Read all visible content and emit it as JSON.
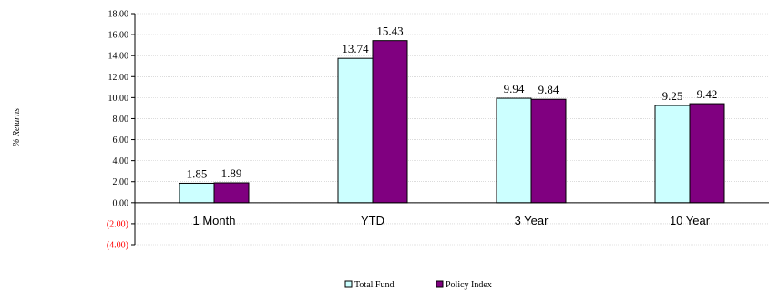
{
  "chart_data": {
    "type": "bar",
    "ylabel": "% Returns",
    "ylim": [
      -4,
      18
    ],
    "yticks": [
      {
        "value": 18,
        "label": "18.00"
      },
      {
        "value": 16,
        "label": "16.00"
      },
      {
        "value": 14,
        "label": "14.00"
      },
      {
        "value": 12,
        "label": "12.00"
      },
      {
        "value": 10,
        "label": "10.00"
      },
      {
        "value": 8,
        "label": "8.00"
      },
      {
        "value": 6,
        "label": "6.00"
      },
      {
        "value": 4,
        "label": "4.00"
      },
      {
        "value": 2,
        "label": "2.00"
      },
      {
        "value": 0,
        "label": "0.00"
      },
      {
        "value": -2,
        "label": "(2.00)"
      },
      {
        "value": -4,
        "label": "(4.00)"
      }
    ],
    "categories": [
      "1 Month",
      "YTD",
      "3 Year",
      "10 Year"
    ],
    "series": [
      {
        "name": "Total Fund",
        "color": "#ccffff",
        "values": [
          1.85,
          13.74,
          9.94,
          9.25
        ],
        "labels": [
          "1.85",
          "13.74",
          "9.94",
          "9.25"
        ]
      },
      {
        "name": "Policy Index",
        "color": "#800080",
        "values": [
          1.89,
          15.43,
          9.84,
          9.42
        ],
        "labels": [
          "1.89",
          "15.43",
          "9.84",
          "9.42"
        ]
      }
    ],
    "negative_tick_color": "#ff0000",
    "grid": true,
    "legend": "bottom"
  }
}
